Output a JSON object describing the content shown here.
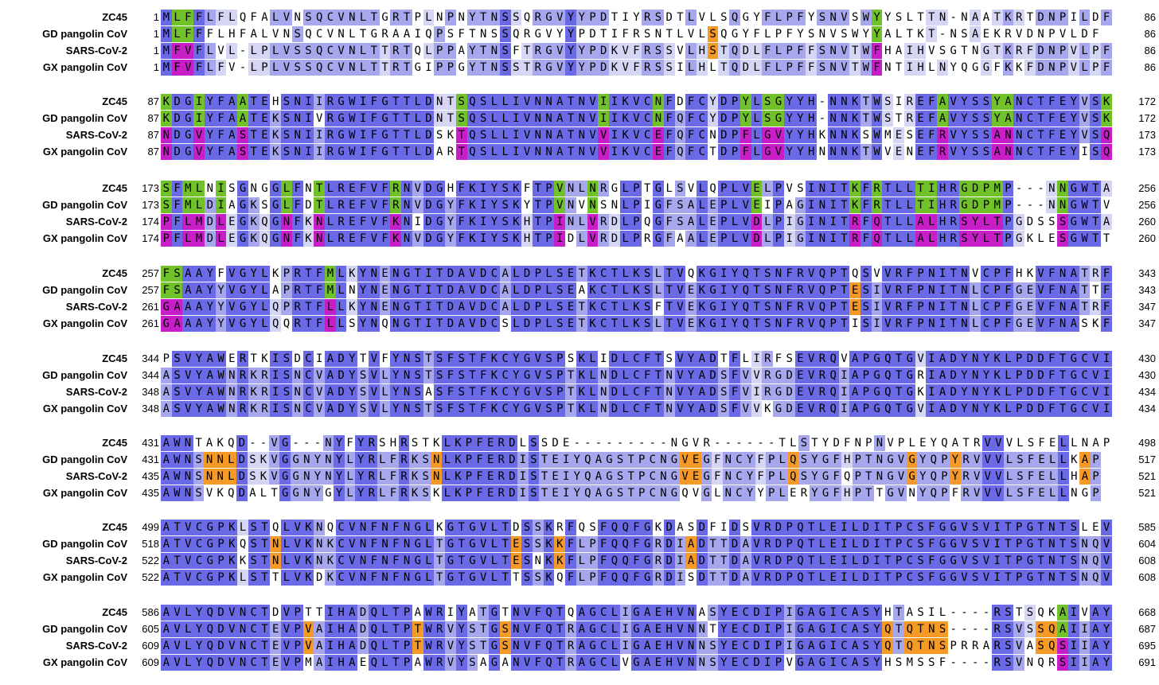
{
  "colors": {
    "conserved": "#6a6ae6",
    "majority": "#a7a7ee",
    "minor": "#d5d5f4",
    "unique": "#ffffff",
    "zc45_gd_shared": "#70c12a",
    "sars2_gx_shared": "#c81ec8",
    "sars2_gd_shared": "#f59a26"
  },
  "species": [
    "ZC45",
    "GD pangolin CoV",
    "SARS-CoV-2",
    "GX pangolin CoV"
  ],
  "blocks": [
    {
      "starts": [
        "1",
        "1",
        "1",
        "1"
      ],
      "ends": [
        "86",
        "86",
        "86",
        "86"
      ],
      "seqs": [
        "MLFFLFLQFALVNSQCVNLTGRTPLNPNYTNSSQRGVYYPDTIYRSDTLVLSQGYFLPFYSNVSWYYSLTTN-NAATKRTDNPILDF",
        "MLFFFLHFALVNSQCVNLTGRAAIQPSFTNSSQRGVYYPDTIFRSNTLVLSQGYFLPFYSNVSWYYALTKT-NSAEKRVDNPVLDF",
        "MFVFLVL-LPLVSSQCVNLTTRTQLPPAYTNSFTRGVYYPDKVFRSSVLHSTQDLFLPFFSNVTWFHAIHVSGTNGTKRFDNPVLPF",
        "MFVFLFV-LPLVSSQCVNLTTRTGIPPGYTNSSTRGVYYPDKVFRSSILHLTQDLFLPFFSNVTWFNTIHLNYQGGFKKFDNPVLPF"
      ]
    },
    {
      "starts": [
        "87",
        "87",
        "87",
        "87"
      ],
      "ends": [
        "172",
        "172",
        "173",
        "173"
      ],
      "seqs": [
        "KDGIYFAATEHSNIIRGWIFGTTLDNTSQSLLIVNNATNVIIKVCNFDFCYDPYLSGYYH-NNKTWSIREFAVYSSYANCTFEYVSK",
        "KDGIYFAATEKSNIVRGWIFGTTLDNTSQSLLIVNNATNVIIKVCNFQFCYDPYLSGYYH-NNKTWSTREFAVYSSYANCTFEYVSK",
        "NDGVYFASTEKSNIIRGWIFGTTLDSKTQSLLIVNNATNVVIKVCEFQFCNDPFLGVYYHKNNKSWMESEFRVYSSANNCTFEYVSQ",
        "NDGVYFASTEKSNIIRGWIFGTTLDARTQSLLIVNNATNVVIKVCEFQFCTDPFLGVYYHNNNKTWVENEFRVYSSANNCTFEYISQ"
      ]
    },
    {
      "starts": [
        "173",
        "173",
        "174",
        "174"
      ],
      "ends": [
        "256",
        "256",
        "260",
        "260"
      ],
      "seqs": [
        "SFMLNISGNGGLFNTLREFVFRNVDGHFKIYSKFTPVNLNRGLPTGLSVLQPLVELPVSINITKFRTLLTIHRGDPMP---NNGWTA",
        "SFMLDIAGKSGLFDTLREFVFRNVDGYFKIYSKYTPVNVNSNLPIGFSALEPLVEIPAGINITKFRTLLTIHRGDPMP---NNGWTV",
        "PFLMDLEGKQGNFKNLREFVFKNIDGYFKIYSKHTPINLVRDLPQGFSALEPLVDLPIGINITRFQTLLALHRSYLTPGDSSSGWTA",
        "PFLMDLEGKQGNFKNLREFVFKNVDGYFKIYSKHTPIDLVRDLPRGFAALEPLVDLPIGINITRFQTLLALHRSYLTPGKLESGWTT"
      ]
    },
    {
      "starts": [
        "257",
        "257",
        "261",
        "261"
      ],
      "ends": [
        "343",
        "343",
        "347",
        "347"
      ],
      "seqs": [
        "FSAAYFVGYLKPRTFMLKYNENGTITDAVDCALDPLSETKCTLKSLTVQKGIYQTSNFRVQPTQSVVRFPNITNVCPFHKVFNATRF",
        "FSAAYYVGYLAPRTFMLNYNENGTITDAVDCALDPLSEAKCTLKSLTVEKGIYQTSNFRVQPTESIVRFPNITNLCPFGEVFNATTF",
        "GAAAYYVGYLQPRTFLLKYNENGTITDAVDCALDPLSETKCTLKSFTVEKGIYQTSNFRVQPTESIVRFPNITNLCPFGEVFNATRF",
        "GAAAYYVGYLQQRTFLLSYNQNGTITDAVDCSLDPLSETKCTLKSLTVEKGIYQTSNFRVQPTISIVRFPNITNLCPFGEVFNASKF"
      ]
    },
    {
      "starts": [
        "344",
        "344",
        "348",
        "348"
      ],
      "ends": [
        "430",
        "430",
        "434",
        "434"
      ],
      "seqs": [
        "PSVYAWERTKISDCIADYTVFYNSTSFSTFKCYGVSPSKLIDLCFTSVYADTFLIRFSEVRQVAPGQTGVIADYNYKLPDDFTGCVI",
        "ASVYAWNRKRISNCVADYSVLYNSTSFSTFKCYGVSPTKLNDLCFTNVYADSFVVRGDEVRQIAPGQTGRIADYNYKLPDDFTGCVI",
        "ASVYAWNRKRISNCVADYSVLYNSASFSTFKCYGVSPTKLNDLCFTNVYADSFVIRGDEVRQIAPGQTGKIADYNYKLPDDFTGCVI",
        "ASVYAWNRKRISNCVADYSVLYNSTSFSTFKCYGVSPTKLNDLCFTNVYADSFVVKGDEVRQIAPGQTGVIADYNYKLPDDFTGCVI"
      ]
    },
    {
      "starts": [
        "431",
        "431",
        "435",
        "435"
      ],
      "ends": [
        "498",
        "517",
        "521",
        "521"
      ],
      "seqs": [
        "AWNTAKQD--VG---NYFYRSHRSTKLKPFERDLSSDE---------NGVR------TLSTYDFNPNVPLEYQATRVVVLSFELLNAP",
        "AWNSNNLDSKVGGNYNYLYRLFRKSNLKPFERDISTEIYQAGSTPCNGVEGFNCYFPLQSYGFHPTNGVGYQPYRVVVLSFELLKAP",
        "AWNSNNLDSKVGGNYNYLYRLFRKSNLKPFERDISTEIYQAGSTPCNGVEGFNCYFPLQSYGFQPTNGVGYQPYRVVVLSFELLHAP",
        "AWNSVKQDALTGGNYGYLYRLFRKSKLKPFERDISTEIYQAGSTPCNGQVGLNCYYPLERYGFHPTTGVNYQPFRVVVLSFELLNGP"
      ]
    },
    {
      "starts": [
        "499",
        "518",
        "522",
        "522"
      ],
      "ends": [
        "585",
        "604",
        "608",
        "608"
      ],
      "seqs": [
        "ATVCGPKLSTQLVKNQCVNFNFNGLKGTGVLTDSSKRFQSFQQFGKDASDFIDSVRDPQTLEILDITPCSFGGVSVITPGTNTSLEV",
        "ATVCGPKQSTNLVKNKCVNFNFNGLTGTGVLTESSKKFLPFQQFGRDIADTTDAVRDPQTLEILDITPCSFGGVSVITPGTNTSNQV",
        "ATVCGPKKSTNLVKNKCVNFNFNGLTGTGVLTESNKKFLPFQQFGRDIADTTDAVRDPQTLEILDITPCSFGGVSVITPGTNTSNQV",
        "ATVCGPKLSTTLVKDKCVNFNFNGLTGTGVLTTSSKQFLPFQQFGRDISDTTDAVRDPQTLEILDITPCSFGGVSVITPGTNTSNQV"
      ]
    },
    {
      "starts": [
        "586",
        "605",
        "609",
        "609"
      ],
      "ends": [
        "668",
        "687",
        "695",
        "691"
      ],
      "seqs": [
        "AVLYQDVNCTDVPTTIHADQLTPAWRIYATGTNVFQTQAGCLIGAEHVNASYECDIPIGAGICASYHTASIL----RSTSQKAIVAY",
        "AVLYQDVNCTEVPVAIHADQLTPTWRVYSTGSNVFQTRAGCLIGAEHVNNTYECDIPIGAGICASYQTQTNS----RSVSSQAIIAY",
        "AVLYQDVNCTEVPVAIHADQLTPTWRVYSTGSNVFQTRAGCLIGAEHVNNSYECDIPIGAGICASYQTQTNSPRRARSVASQSIIAY",
        "AVLYQDVNCTEVPMAIHAEQLTPAWRVYSAGANVFQTRAGCLVGAEHVNNSYECDIPVGAGICASYHSMSSF----RSVNQRSIIAY"
      ]
    }
  ]
}
